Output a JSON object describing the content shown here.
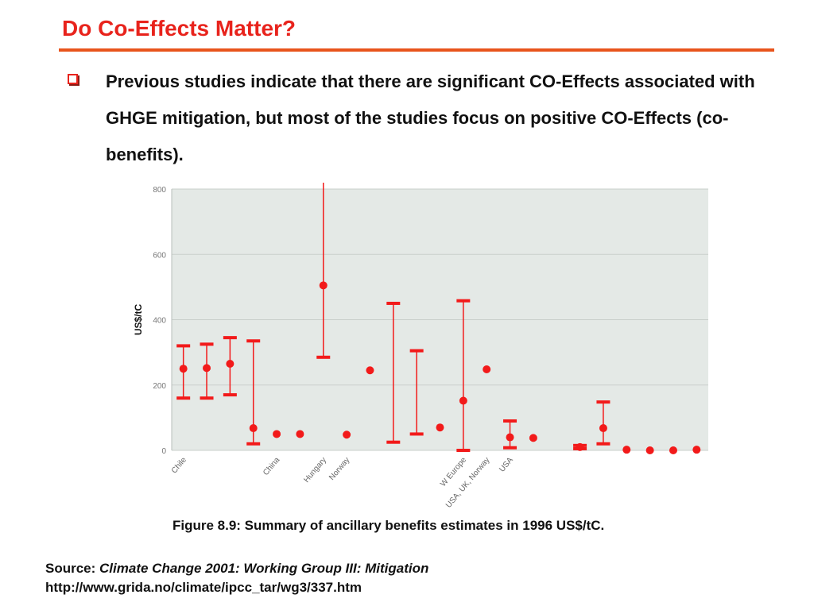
{
  "slide": {
    "title": "Do Co-Effects Matter?",
    "bullet": "Previous studies indicate that there are significant CO-Effects associated with GHGE mitigation, but most of the studies focus on positive CO-Effects (co-benefits).",
    "caption": "Figure 8.9: Summary of ancillary benefits estimates in 1996 US$/tC.",
    "source_label": "Source:",
    "source_title": "Climate Change 2001: Working Group III: Mitigation",
    "source_url": "http://www.grida.no/climate/ipcc_tar/wg3/337.htm"
  },
  "colors": {
    "title": "#e8231c",
    "rule": "#e8541c",
    "marker": "#f21a1a",
    "plot_bg": "#e4e9e6",
    "grid": "#c9cfcb",
    "tick_text": "#777777"
  },
  "chart_data": {
    "type": "scatter",
    "ylabel": "US$/tC",
    "ylim": [
      0,
      800
    ],
    "yticks": [
      0,
      200,
      400,
      600,
      800
    ],
    "grid": true,
    "legend": "none",
    "x_labels": [
      {
        "text": "Chile",
        "x": 1
      },
      {
        "text": "China",
        "x": 5
      },
      {
        "text": "Hungary",
        "x": 7
      },
      {
        "text": "Norway",
        "x": 8
      },
      {
        "text": "W Europe",
        "x": 13
      },
      {
        "text": "USA, UK, Norway",
        "x": 14
      },
      {
        "text": "USA",
        "x": 15
      }
    ],
    "points": [
      {
        "x": 1,
        "y": 250,
        "low": 160,
        "high": 320
      },
      {
        "x": 2,
        "y": 252,
        "low": 160,
        "high": 325
      },
      {
        "x": 3,
        "y": 265,
        "low": 170,
        "high": 345
      },
      {
        "x": 4,
        "y": 68,
        "low": 20,
        "high": 335
      },
      {
        "x": 5,
        "y": 50
      },
      {
        "x": 6,
        "y": 50
      },
      {
        "x": 7,
        "y": 505,
        "low": 285,
        "high": 820
      },
      {
        "x": 8,
        "y": 48
      },
      {
        "x": 9,
        "y": 245
      },
      {
        "x": 10,
        "y": null,
        "low": 25,
        "high": 450
      },
      {
        "x": 11,
        "y": null,
        "low": 50,
        "high": 305
      },
      {
        "x": 12,
        "y": 70
      },
      {
        "x": 13,
        "y": 152,
        "low": 0,
        "high": 458
      },
      {
        "x": 14,
        "y": 248
      },
      {
        "x": 15,
        "y": 40,
        "low": 8,
        "high": 90
      },
      {
        "x": 16,
        "y": 38
      },
      {
        "x": 18,
        "y": 10,
        "low": 5,
        "high": 15
      },
      {
        "x": 19,
        "y": 68,
        "low": 20,
        "high": 148
      },
      {
        "x": 20,
        "y": 2
      },
      {
        "x": 21,
        "y": 0
      },
      {
        "x": 22,
        "y": 0
      },
      {
        "x": 23,
        "y": 2
      }
    ]
  }
}
